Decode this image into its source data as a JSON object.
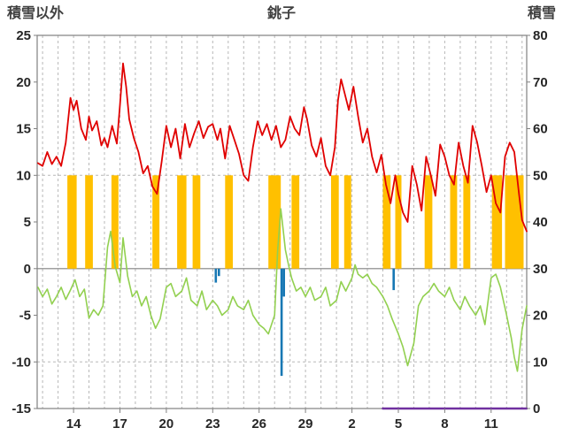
{
  "header": {
    "left_axis_title": "積雪以外",
    "title": "銚子",
    "right_axis_title": "積雪"
  },
  "chart_data": {
    "type": "line",
    "title": "銚子",
    "left_axis": {
      "label": "積雪以外",
      "min": -15,
      "max": 25,
      "ticks": [
        25,
        20,
        15,
        10,
        5,
        0,
        -5,
        -10,
        -15
      ]
    },
    "right_axis": {
      "label": "積雪",
      "min": 0,
      "max": 80,
      "ticks": [
        80,
        70,
        60,
        50,
        40,
        30,
        20,
        10,
        0
      ]
    },
    "x_axis": {
      "day_min": 11.65,
      "day_max": 43.3,
      "tick_days": [
        14,
        17,
        20,
        23,
        26,
        29,
        32,
        35,
        38,
        41
      ],
      "tick_labels": [
        "14",
        "17",
        "20",
        "23",
        "26",
        "29",
        "2",
        "5",
        "8",
        "11"
      ],
      "gridline_step_days": 1
    },
    "h_gridlines": [
      10,
      -10
    ],
    "grid": "on",
    "legend": "none",
    "colors": {
      "grid": "#b8b8b8",
      "axis": "#808080",
      "temperature": "#e00000",
      "secondary": "#92d050",
      "sunshine": "#ffc000",
      "precipitation": "#1878b4",
      "snow": "#7030a0",
      "text": "#262626"
    },
    "series": [
      {
        "name": "sunshine-blocks",
        "kind": "block",
        "color": "#ffc000",
        "top": 10,
        "spans": [
          [
            13.6,
            14.2
          ],
          [
            14.75,
            15.25
          ],
          [
            16.45,
            16.9
          ],
          [
            19.1,
            19.55
          ],
          [
            20.7,
            21.3
          ],
          [
            21.7,
            22.2
          ],
          [
            23.8,
            24.3
          ],
          [
            26.6,
            27.4
          ],
          [
            28.1,
            28.6
          ],
          [
            30.65,
            31.15
          ],
          [
            31.5,
            31.95
          ],
          [
            34.0,
            34.5
          ],
          [
            34.8,
            35.2
          ],
          [
            36.7,
            37.2
          ],
          [
            38.35,
            38.8
          ],
          [
            39.2,
            39.65
          ],
          [
            41.05,
            41.7
          ],
          [
            41.9,
            43.1
          ]
        ]
      },
      {
        "name": "precipitation-spikes",
        "kind": "bar-down",
        "color": "#1878b4",
        "bars": [
          [
            23.2,
            -1.5
          ],
          [
            23.4,
            -0.8
          ],
          [
            27.45,
            -11.5
          ],
          [
            27.6,
            -3.0
          ],
          [
            34.7,
            -2.3
          ]
        ]
      },
      {
        "name": "snow-depth-line",
        "kind": "line",
        "color": "#7030a0",
        "width": 2.5,
        "points": [
          [
            34.0,
            -15
          ],
          [
            43.3,
            -15
          ]
        ]
      },
      {
        "name": "secondary-temperature-line",
        "kind": "line",
        "color": "#92d050",
        "width": 1.6,
        "points": [
          [
            11.7,
            -2.0
          ],
          [
            12.0,
            -3.0
          ],
          [
            12.3,
            -2.2
          ],
          [
            12.6,
            -3.8
          ],
          [
            12.9,
            -3.0
          ],
          [
            13.2,
            -2.0
          ],
          [
            13.5,
            -3.3
          ],
          [
            13.8,
            -2.3
          ],
          [
            14.1,
            -1.2
          ],
          [
            14.4,
            -3.0
          ],
          [
            14.7,
            -2.2
          ],
          [
            15.0,
            -5.3
          ],
          [
            15.3,
            -4.4
          ],
          [
            15.6,
            -5.0
          ],
          [
            15.9,
            -4.0
          ],
          [
            16.2,
            2.3
          ],
          [
            16.4,
            4.0
          ],
          [
            16.7,
            0.2
          ],
          [
            17.0,
            -1.5
          ],
          [
            17.2,
            3.3
          ],
          [
            17.5,
            -0.8
          ],
          [
            17.8,
            -3.0
          ],
          [
            18.1,
            -2.4
          ],
          [
            18.4,
            -4.0
          ],
          [
            18.7,
            -3.0
          ],
          [
            19.0,
            -5.0
          ],
          [
            19.3,
            -6.4
          ],
          [
            19.6,
            -5.4
          ],
          [
            20.0,
            -2.0
          ],
          [
            20.3,
            -1.6
          ],
          [
            20.6,
            -3.0
          ],
          [
            21.0,
            -2.4
          ],
          [
            21.3,
            -1.0
          ],
          [
            21.6,
            -3.4
          ],
          [
            22.0,
            -4.0
          ],
          [
            22.3,
            -2.4
          ],
          [
            22.6,
            -4.4
          ],
          [
            23.0,
            -3.4
          ],
          [
            23.3,
            -4.0
          ],
          [
            23.6,
            -5.0
          ],
          [
            24.0,
            -4.4
          ],
          [
            24.3,
            -3.0
          ],
          [
            24.6,
            -4.0
          ],
          [
            25.0,
            -4.4
          ],
          [
            25.3,
            -3.4
          ],
          [
            25.6,
            -5.0
          ],
          [
            26.0,
            -6.0
          ],
          [
            26.3,
            -6.4
          ],
          [
            26.6,
            -7.0
          ],
          [
            27.0,
            -5.0
          ],
          [
            27.2,
            2.0
          ],
          [
            27.4,
            6.4
          ],
          [
            27.5,
            5.0
          ],
          [
            27.7,
            2.0
          ],
          [
            27.9,
            0.4
          ],
          [
            28.1,
            -1.0
          ],
          [
            28.4,
            -2.4
          ],
          [
            28.7,
            -2.0
          ],
          [
            29.0,
            -3.0
          ],
          [
            29.3,
            -2.0
          ],
          [
            29.6,
            -3.4
          ],
          [
            30.0,
            -3.0
          ],
          [
            30.3,
            -2.0
          ],
          [
            30.6,
            -4.0
          ],
          [
            31.0,
            -3.4
          ],
          [
            31.3,
            -1.4
          ],
          [
            31.6,
            -2.4
          ],
          [
            32.0,
            -1.0
          ],
          [
            32.2,
            0.4
          ],
          [
            32.4,
            -0.6
          ],
          [
            32.7,
            -1.0
          ],
          [
            33.0,
            -0.6
          ],
          [
            33.3,
            -1.6
          ],
          [
            33.6,
            -2.0
          ],
          [
            34.0,
            -3.0
          ],
          [
            34.3,
            -4.0
          ],
          [
            34.6,
            -5.4
          ],
          [
            35.0,
            -7.0
          ],
          [
            35.3,
            -8.4
          ],
          [
            35.6,
            -10.4
          ],
          [
            36.0,
            -8.0
          ],
          [
            36.3,
            -4.0
          ],
          [
            36.6,
            -3.0
          ],
          [
            37.0,
            -2.4
          ],
          [
            37.3,
            -1.6
          ],
          [
            37.6,
            -2.4
          ],
          [
            38.0,
            -3.0
          ],
          [
            38.3,
            -2.0
          ],
          [
            38.6,
            -3.4
          ],
          [
            39.0,
            -4.4
          ],
          [
            39.3,
            -3.0
          ],
          [
            39.6,
            -4.0
          ],
          [
            40.0,
            -5.0
          ],
          [
            40.3,
            -4.0
          ],
          [
            40.6,
            -6.0
          ],
          [
            41.0,
            -1.0
          ],
          [
            41.3,
            -0.6
          ],
          [
            41.6,
            -2.0
          ],
          [
            42.0,
            -5.0
          ],
          [
            42.3,
            -7.4
          ],
          [
            42.5,
            -9.5
          ],
          [
            42.7,
            -11.0
          ],
          [
            43.0,
            -6.5
          ],
          [
            43.3,
            -4.0
          ]
        ]
      },
      {
        "name": "temperature-line",
        "kind": "line",
        "color": "#e00000",
        "width": 1.8,
        "points": [
          [
            11.7,
            11.3
          ],
          [
            12.0,
            11.0
          ],
          [
            12.3,
            12.5
          ],
          [
            12.6,
            11.2
          ],
          [
            12.9,
            12.0
          ],
          [
            13.2,
            11.0
          ],
          [
            13.5,
            13.5
          ],
          [
            13.8,
            18.3
          ],
          [
            14.0,
            17.0
          ],
          [
            14.2,
            18.0
          ],
          [
            14.5,
            15.0
          ],
          [
            14.8,
            13.8
          ],
          [
            15.0,
            16.3
          ],
          [
            15.2,
            14.8
          ],
          [
            15.5,
            15.8
          ],
          [
            15.8,
            13.2
          ],
          [
            16.0,
            14.0
          ],
          [
            16.2,
            13.0
          ],
          [
            16.5,
            15.3
          ],
          [
            16.8,
            13.4
          ],
          [
            17.0,
            17.5
          ],
          [
            17.2,
            22.0
          ],
          [
            17.4,
            19.5
          ],
          [
            17.6,
            16.0
          ],
          [
            17.9,
            14.0
          ],
          [
            18.2,
            12.5
          ],
          [
            18.5,
            10.2
          ],
          [
            18.8,
            11.0
          ],
          [
            19.1,
            8.8
          ],
          [
            19.4,
            8.0
          ],
          [
            19.7,
            11.5
          ],
          [
            20.0,
            15.3
          ],
          [
            20.3,
            13.0
          ],
          [
            20.6,
            15.0
          ],
          [
            20.9,
            11.8
          ],
          [
            21.2,
            15.5
          ],
          [
            21.5,
            13.0
          ],
          [
            21.8,
            14.5
          ],
          [
            22.1,
            15.8
          ],
          [
            22.4,
            14.0
          ],
          [
            22.7,
            15.2
          ],
          [
            23.0,
            15.5
          ],
          [
            23.3,
            13.8
          ],
          [
            23.5,
            15.0
          ],
          [
            23.8,
            11.8
          ],
          [
            24.1,
            15.3
          ],
          [
            24.4,
            13.8
          ],
          [
            24.7,
            12.3
          ],
          [
            25.0,
            10.0
          ],
          [
            25.3,
            9.4
          ],
          [
            25.6,
            13.0
          ],
          [
            25.9,
            15.8
          ],
          [
            26.2,
            14.3
          ],
          [
            26.5,
            15.5
          ],
          [
            26.8,
            13.8
          ],
          [
            27.1,
            15.3
          ],
          [
            27.4,
            13.0
          ],
          [
            27.7,
            13.8
          ],
          [
            28.0,
            16.3
          ],
          [
            28.3,
            15.0
          ],
          [
            28.6,
            14.3
          ],
          [
            28.9,
            17.3
          ],
          [
            29.1,
            16.0
          ],
          [
            29.4,
            13.2
          ],
          [
            29.7,
            12.0
          ],
          [
            30.0,
            14.0
          ],
          [
            30.3,
            11.0
          ],
          [
            30.6,
            10.0
          ],
          [
            30.9,
            13.0
          ],
          [
            31.1,
            18.0
          ],
          [
            31.3,
            20.3
          ],
          [
            31.5,
            19.0
          ],
          [
            31.8,
            17.0
          ],
          [
            32.1,
            19.5
          ],
          [
            32.4,
            16.3
          ],
          [
            32.7,
            13.5
          ],
          [
            33.0,
            15.0
          ],
          [
            33.3,
            12.0
          ],
          [
            33.6,
            10.3
          ],
          [
            33.9,
            12.2
          ],
          [
            34.2,
            9.0
          ],
          [
            34.5,
            7.0
          ],
          [
            34.8,
            10.0
          ],
          [
            35.0,
            8.0
          ],
          [
            35.3,
            6.0
          ],
          [
            35.6,
            5.0
          ],
          [
            35.9,
            11.0
          ],
          [
            36.2,
            9.0
          ],
          [
            36.5,
            6.2
          ],
          [
            36.8,
            12.0
          ],
          [
            37.1,
            10.0
          ],
          [
            37.4,
            7.8
          ],
          [
            37.7,
            13.3
          ],
          [
            38.0,
            12.0
          ],
          [
            38.3,
            10.0
          ],
          [
            38.6,
            9.0
          ],
          [
            38.9,
            13.5
          ],
          [
            39.2,
            11.0
          ],
          [
            39.5,
            9.2
          ],
          [
            39.8,
            15.3
          ],
          [
            40.1,
            13.5
          ],
          [
            40.4,
            11.0
          ],
          [
            40.7,
            8.2
          ],
          [
            41.0,
            10.0
          ],
          [
            41.3,
            7.0
          ],
          [
            41.6,
            6.0
          ],
          [
            41.9,
            12.0
          ],
          [
            42.2,
            13.5
          ],
          [
            42.5,
            12.5
          ],
          [
            42.8,
            8.0
          ],
          [
            43.0,
            5.2
          ],
          [
            43.3,
            4.0
          ]
        ]
      }
    ]
  }
}
